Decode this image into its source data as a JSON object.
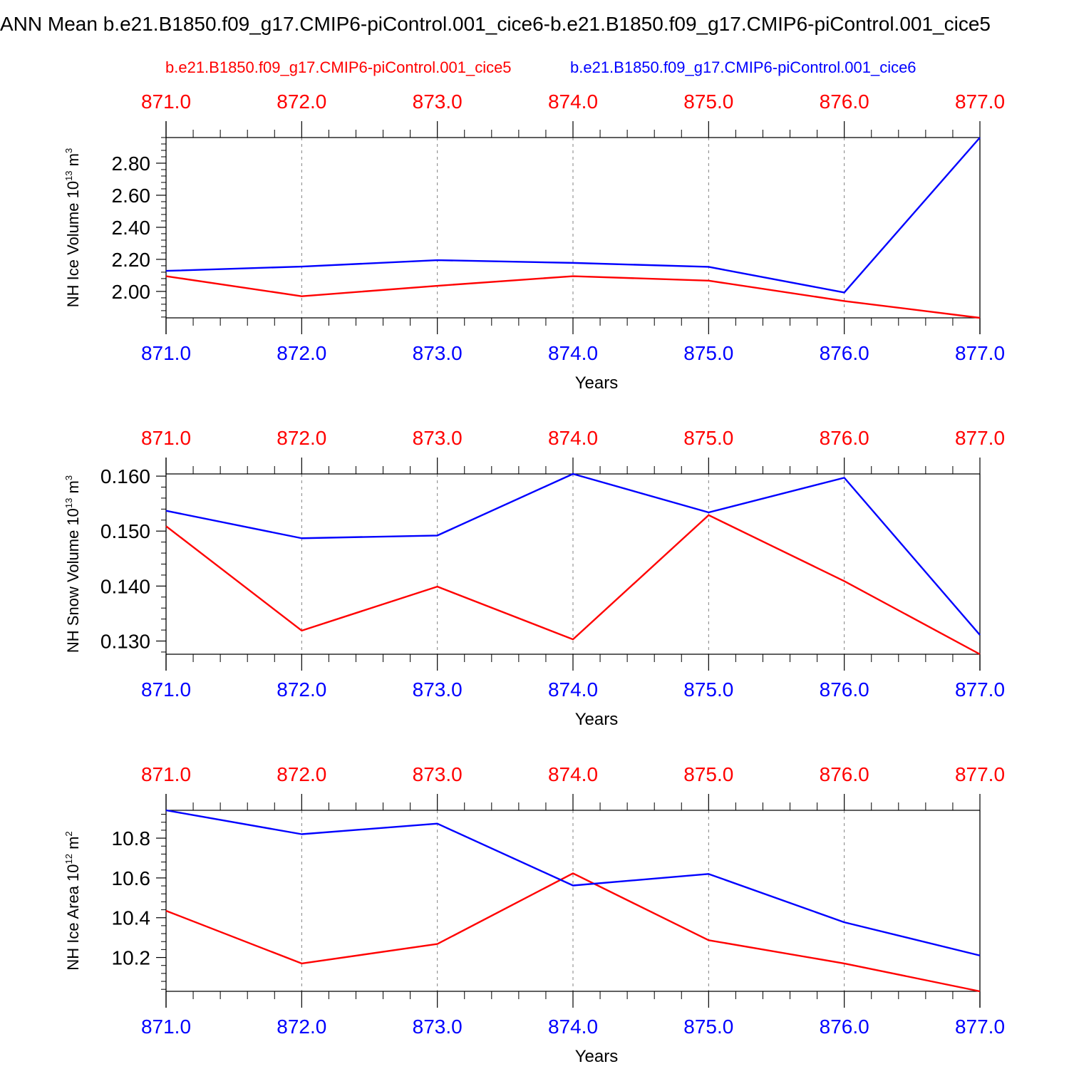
{
  "title": "ANN Mean b.e21.B1850.f09_g17.CMIP6-piControl.001_cice6-b.e21.B1850.f09_g17.CMIP6-piControl.001_cice5",
  "legend": {
    "red_label": "b.e21.B1850.f09_g17.CMIP6-piControl.001_cice5",
    "blue_label": "b.e21.B1850.f09_g17.CMIP6-piControl.001_cice6"
  },
  "colors": {
    "series_a": "#ff0000",
    "series_b": "#0000ff",
    "axis": "#000000",
    "grid": "#808080"
  },
  "chart_data": [
    {
      "type": "line",
      "ylabel": "NH Ice Volume 10^13 m^3",
      "xlabel": "Years",
      "x": [
        871,
        872,
        873,
        874,
        875,
        876,
        877
      ],
      "x_tick_labels": [
        "871.0",
        "872.0",
        "873.0",
        "874.0",
        "875.0",
        "876.0",
        "877.0"
      ],
      "y_tick_labels": [
        "2.00",
        "2.20",
        "2.40",
        "2.60",
        "2.80"
      ],
      "y_ticks": [
        2.0,
        2.2,
        2.4,
        2.6,
        2.8
      ],
      "ylim": [
        1.835,
        2.96
      ],
      "grid": "vertical dashed",
      "series": [
        {
          "name": "b.e21.B1850.f09_g17.CMIP6-piControl.001_cice5",
          "color": "red",
          "values": [
            2.095,
            1.97,
            2.035,
            2.095,
            2.067,
            1.94,
            1.835
          ]
        },
        {
          "name": "b.e21.B1850.f09_g17.CMIP6-piControl.001_cice6",
          "color": "blue",
          "values": [
            2.128,
            2.155,
            2.195,
            2.178,
            2.153,
            1.993,
            2.96
          ]
        }
      ]
    },
    {
      "type": "line",
      "ylabel": "NH Snow Volume 10^13 m^3",
      "xlabel": "Years",
      "x": [
        871,
        872,
        873,
        874,
        875,
        876,
        877
      ],
      "x_tick_labels": [
        "871.0",
        "872.0",
        "873.0",
        "874.0",
        "875.0",
        "876.0",
        "877.0"
      ],
      "y_tick_labels": [
        "0.130",
        "0.140",
        "0.150",
        "0.160"
      ],
      "y_ticks": [
        0.13,
        0.14,
        0.15,
        0.16
      ],
      "ylim": [
        0.1276,
        0.1604
      ],
      "grid": "vertical dashed",
      "series": [
        {
          "name": "b.e21.B1850.f09_g17.CMIP6-piControl.001_cice5",
          "color": "red",
          "values": [
            0.1509,
            0.1319,
            0.1399,
            0.1303,
            0.1529,
            0.1409,
            0.1276
          ]
        },
        {
          "name": "b.e21.B1850.f09_g17.CMIP6-piControl.001_cice6",
          "color": "blue",
          "values": [
            0.1537,
            0.1487,
            0.1492,
            0.1604,
            0.1534,
            0.1597,
            0.1311
          ]
        }
      ]
    },
    {
      "type": "line",
      "ylabel": "NH Ice Area 10^12 m^2",
      "xlabel": "Years",
      "x": [
        871,
        872,
        873,
        874,
        875,
        876,
        877
      ],
      "x_tick_labels": [
        "871.0",
        "872.0",
        "873.0",
        "874.0",
        "875.0",
        "876.0",
        "877.0"
      ],
      "y_tick_labels": [
        "10.2",
        "10.4",
        "10.6",
        "10.8"
      ],
      "y_ticks": [
        10.2,
        10.4,
        10.6,
        10.8
      ],
      "ylim": [
        10.03,
        10.94
      ],
      "grid": "vertical dashed",
      "series": [
        {
          "name": "b.e21.B1850.f09_g17.CMIP6-piControl.001_cice5",
          "color": "red",
          "values": [
            10.435,
            10.17,
            10.268,
            10.623,
            10.287,
            10.17,
            10.03
          ]
        },
        {
          "name": "b.e21.B1850.f09_g17.CMIP6-piControl.001_cice6",
          "color": "blue",
          "values": [
            10.94,
            10.82,
            10.873,
            10.562,
            10.62,
            10.377,
            10.21
          ]
        }
      ]
    }
  ]
}
